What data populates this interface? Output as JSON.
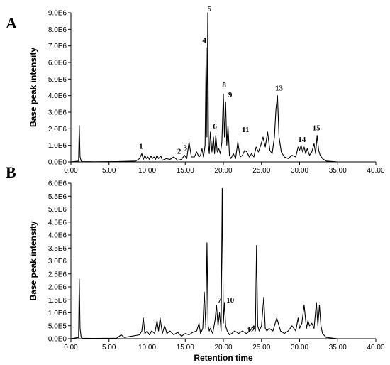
{
  "chart_data": [
    {
      "type": "line",
      "panel_label": "A",
      "xlabel": "",
      "ylabel": "Base peak intensity",
      "xlim": [
        0,
        40
      ],
      "ylim": [
        0,
        9000000
      ],
      "y_ticks": [
        "0.0E0",
        "1.0E6",
        "2.0E6",
        "3.0E6",
        "4.0E6",
        "5.0E6",
        "6.0E6",
        "7.0E6",
        "8.0E6",
        "9.0E6"
      ],
      "x_ticks": [
        "0.00",
        "5.00",
        "10.00",
        "15.00",
        "20.00",
        "25.00",
        "30.00",
        "35.00",
        "40.00"
      ],
      "series": [
        {
          "x": [
            0,
            1.0,
            1.1,
            1.2,
            1.35,
            1.5,
            3,
            6,
            8.5,
            9.0,
            9.3,
            9.5,
            9.7,
            9.9,
            10.1,
            10.3,
            10.5,
            10.7,
            10.9,
            11.1,
            11.3,
            11.5,
            11.8,
            12.0,
            12.5,
            13.0,
            13.5,
            14.0,
            14.5,
            14.9,
            15.2,
            15.5,
            15.8,
            16.2,
            16.5,
            16.8,
            17.0,
            17.2,
            17.4,
            17.6,
            17.75,
            17.85,
            17.95,
            18.05,
            18.15,
            18.3,
            18.5,
            18.7,
            18.85,
            19.0,
            19.2,
            19.4,
            19.6,
            19.8,
            20.0,
            20.15,
            20.3,
            20.45,
            20.6,
            20.8,
            21.0,
            21.3,
            21.6,
            21.9,
            22.2,
            22.5,
            22.8,
            23.1,
            23.4,
            23.7,
            24.0,
            24.3,
            24.6,
            24.9,
            25.2,
            25.5,
            25.8,
            26.1,
            26.4,
            26.7,
            26.9,
            27.1,
            27.3,
            27.6,
            28.0,
            28.5,
            29.0,
            29.5,
            29.8,
            30.0,
            30.2,
            30.4,
            30.6,
            30.8,
            31.0,
            31.3,
            31.6,
            31.9,
            32.1,
            32.3,
            32.5,
            32.7,
            33.0,
            33.5,
            35,
            40
          ],
          "values": [
            0,
            50000,
            2200000,
            300000,
            50000,
            20000,
            10000,
            20000,
            50000,
            200000,
            500000,
            150000,
            400000,
            200000,
            300000,
            150000,
            350000,
            200000,
            300000,
            150000,
            400000,
            200000,
            350000,
            100000,
            200000,
            150000,
            300000,
            100000,
            150000,
            400000,
            200000,
            1200000,
            300000,
            300000,
            600000,
            300000,
            400000,
            800000,
            300000,
            1000000,
            6900000,
            1500000,
            9000000,
            1000000,
            500000,
            1800000,
            600000,
            1500000,
            500000,
            1600000,
            600000,
            800000,
            500000,
            1200000,
            4100000,
            1500000,
            3600000,
            1000000,
            2200000,
            400000,
            200000,
            500000,
            200000,
            1200000,
            300000,
            400000,
            700000,
            600000,
            300000,
            500000,
            300000,
            900000,
            600000,
            1000000,
            1500000,
            900000,
            1800000,
            700000,
            500000,
            1500000,
            3200000,
            4000000,
            1500000,
            600000,
            300000,
            200000,
            400000,
            300000,
            900000,
            700000,
            1000000,
            600000,
            900000,
            500000,
            800000,
            400000,
            600000,
            1100000,
            500000,
            1600000,
            700000,
            400000,
            200000,
            50000,
            0,
            0
          ]
        }
      ],
      "annotations": [
        {
          "text": "1",
          "x": 9.2,
          "y": 800000
        },
        {
          "text": "2",
          "x": 14.2,
          "y": 500000
        },
        {
          "text": "3",
          "x": 15.0,
          "y": 700000
        },
        {
          "text": "4",
          "x": 17.5,
          "y": 7200000
        },
        {
          "text": "5",
          "x": 18.2,
          "y": 9100000
        },
        {
          "text": "6",
          "x": 18.9,
          "y": 2000000
        },
        {
          "text": "8",
          "x": 20.1,
          "y": 4500000
        },
        {
          "text": "9",
          "x": 20.9,
          "y": 3900000
        },
        {
          "text": "11",
          "x": 22.9,
          "y": 1800000
        },
        {
          "text": "13",
          "x": 27.3,
          "y": 4300000
        },
        {
          "text": "14",
          "x": 30.3,
          "y": 1200000
        },
        {
          "text": "15",
          "x": 32.2,
          "y": 1900000
        }
      ]
    },
    {
      "type": "line",
      "panel_label": "B",
      "xlabel": "Retention time",
      "ylabel": "Base peak intensity",
      "xlim": [
        0,
        40
      ],
      "ylim": [
        0,
        6000000
      ],
      "y_ticks": [
        "0.0E0",
        "5.0E5",
        "1.0E6",
        "1.5E6",
        "2.0E6",
        "2.5E6",
        "3.0E6",
        "3.5E6",
        "4.0E6",
        "4.5E6",
        "5.0E6",
        "5.5E6",
        "6.0E6"
      ],
      "x_ticks": [
        "0.00",
        "5.00",
        "10.00",
        "15.00",
        "20.00",
        "25.00",
        "30.00",
        "35.00",
        "40.00"
      ],
      "series": [
        {
          "x": [
            0,
            1.0,
            1.1,
            1.2,
            1.35,
            1.5,
            3,
            6,
            6.6,
            7.0,
            8.0,
            9.0,
            9.3,
            9.5,
            9.7,
            10.0,
            10.3,
            10.6,
            11.0,
            11.3,
            11.5,
            11.7,
            12.0,
            12.3,
            12.6,
            13.0,
            13.5,
            14.0,
            14.5,
            15.0,
            15.5,
            16.0,
            16.5,
            16.8,
            17.0,
            17.3,
            17.5,
            17.7,
            17.85,
            18.0,
            18.15,
            18.3,
            18.6,
            18.9,
            19.1,
            19.3,
            19.5,
            19.7,
            19.85,
            20.0,
            20.15,
            20.3,
            20.5,
            20.8,
            21.1,
            21.5,
            22.0,
            22.5,
            23.0,
            23.5,
            24.0,
            24.2,
            24.35,
            24.5,
            24.7,
            25.0,
            25.3,
            25.5,
            25.7,
            26.0,
            26.5,
            27.0,
            27.5,
            28.0,
            28.5,
            29.0,
            29.5,
            29.8,
            30.0,
            30.3,
            30.6,
            30.9,
            31.1,
            31.3,
            31.6,
            31.9,
            32.2,
            32.4,
            32.6,
            32.8,
            33.0,
            33.5,
            35,
            40
          ],
          "values": [
            0,
            50000,
            2300000,
            400000,
            50000,
            20000,
            10000,
            20000,
            150000,
            50000,
            100000,
            150000,
            300000,
            800000,
            200000,
            300000,
            150000,
            300000,
            200000,
            700000,
            300000,
            800000,
            200000,
            500000,
            200000,
            300000,
            150000,
            250000,
            100000,
            200000,
            150000,
            250000,
            300000,
            600000,
            200000,
            400000,
            1800000,
            400000,
            3700000,
            500000,
            300000,
            400000,
            200000,
            700000,
            1300000,
            500000,
            1000000,
            300000,
            5800000,
            600000,
            1400000,
            500000,
            300000,
            150000,
            200000,
            300000,
            200000,
            300000,
            200000,
            300000,
            500000,
            300000,
            3600000,
            500000,
            300000,
            500000,
            1600000,
            400000,
            300000,
            400000,
            300000,
            800000,
            300000,
            200000,
            300000,
            500000,
            300000,
            800000,
            400000,
            600000,
            1300000,
            400000,
            700000,
            500000,
            600000,
            400000,
            1400000,
            500000,
            1300000,
            500000,
            200000,
            50000,
            0,
            0
          ]
        }
      ],
      "annotations": [
        {
          "text": "7",
          "x": 19.5,
          "y": 1400000
        },
        {
          "text": "10",
          "x": 20.9,
          "y": 1400000
        },
        {
          "text": "12",
          "x": 23.6,
          "y": 250000
        }
      ]
    }
  ]
}
